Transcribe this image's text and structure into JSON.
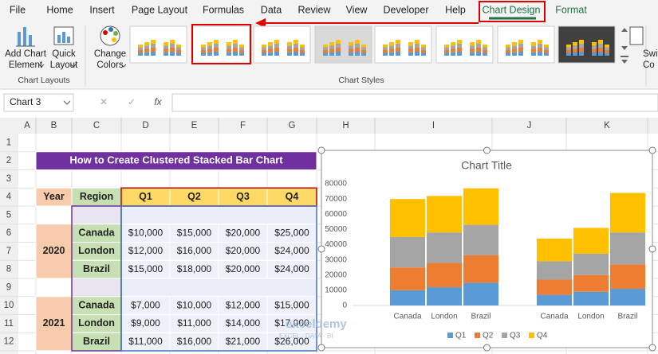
{
  "ribbon": {
    "tabs": [
      "File",
      "Home",
      "Insert",
      "Page Layout",
      "Formulas",
      "Data",
      "Review",
      "View",
      "Developer",
      "Help",
      "Chart Design",
      "Format"
    ],
    "buttons": [
      [
        "Add Chart",
        "Element"
      ],
      [
        "Quick",
        "Layout"
      ],
      [
        "Change",
        "Colors"
      ],
      [
        "Swit",
        "Co"
      ]
    ],
    "groups": [
      "Chart Layouts",
      "Chart Styles"
    ]
  },
  "formula_bar": {
    "name_box": "Chart 3",
    "fx": "fx"
  },
  "sheet": {
    "columns": [
      "A",
      "B",
      "C",
      "D",
      "E",
      "F",
      "G",
      "H",
      "I",
      "J",
      "K"
    ],
    "rows": [
      1,
      2,
      3,
      4,
      5,
      6,
      7,
      8,
      9,
      10,
      11,
      12
    ],
    "title": "How to Create Clustered Stacked Bar Chart",
    "headers": [
      "Year",
      "Region",
      "Q1",
      "Q2",
      "Q3",
      "Q4"
    ],
    "groups": [
      {
        "year": "2020",
        "rows": [
          [
            "Canada",
            "$10,000",
            "$15,000",
            "$20,000",
            "$25,000"
          ],
          [
            "London",
            "$12,000",
            "$16,000",
            "$20,000",
            "$24,000"
          ],
          [
            "Brazil",
            "$15,000",
            "$18,000",
            "$20,000",
            "$24,000"
          ]
        ]
      },
      {
        "year": "2021",
        "rows": [
          [
            "Canada",
            "$7,000",
            "$10,000",
            "$12,000",
            "$15,000"
          ],
          [
            "London",
            "$9,000",
            "$11,000",
            "$14,000",
            "$17,000"
          ],
          [
            "Brazil",
            "$11,000",
            "$16,000",
            "$21,000",
            "$26,000"
          ]
        ]
      }
    ]
  },
  "watermark": {
    "name": "exceldemy",
    "tagline": "EXCEL · DATA · BI"
  },
  "chart_data": {
    "type": "stacked-bar",
    "title": "Chart Title",
    "categories": [
      null,
      "Canada",
      "London",
      "Brazil",
      null,
      "Canada",
      "London",
      "Brazil"
    ],
    "series": [
      {
        "name": "Q1",
        "color": "#5b9bd5",
        "values": [
          null,
          10000,
          12000,
          15000,
          null,
          7000,
          9000,
          11000
        ]
      },
      {
        "name": "Q2",
        "color": "#ed7d31",
        "values": [
          null,
          15000,
          16000,
          18000,
          null,
          10000,
          11000,
          16000
        ]
      },
      {
        "name": "Q3",
        "color": "#a5a5a5",
        "values": [
          null,
          20000,
          20000,
          20000,
          null,
          12000,
          14000,
          21000
        ]
      },
      {
        "name": "Q4",
        "color": "#ffc000",
        "values": [
          null,
          25000,
          24000,
          24000,
          null,
          15000,
          17000,
          26000
        ]
      }
    ],
    "ylim": [
      0,
      80000
    ],
    "yticks": [
      0,
      10000,
      20000,
      30000,
      40000,
      50000,
      60000,
      70000,
      80000
    ],
    "grid": false,
    "legend": "bottom"
  }
}
